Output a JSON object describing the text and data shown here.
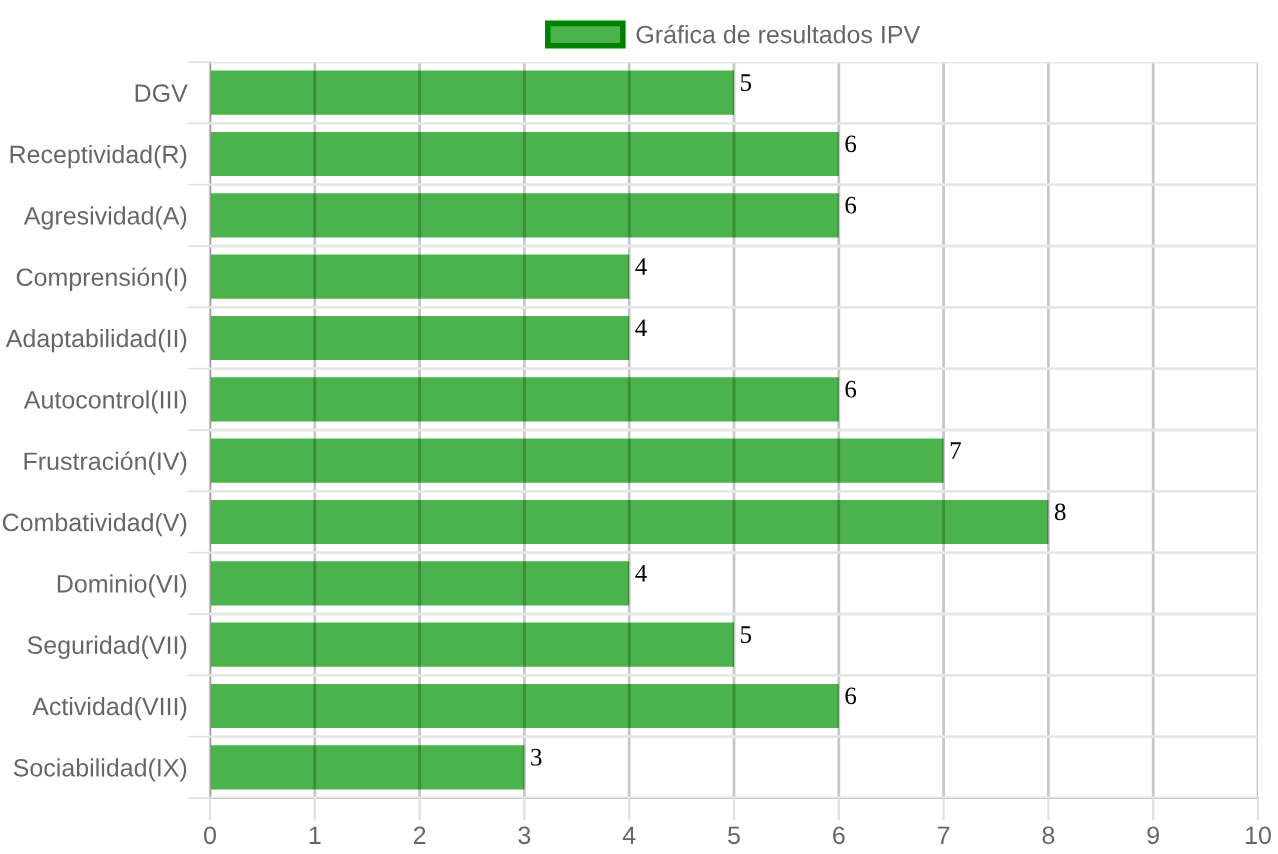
{
  "chart_data": {
    "type": "bar",
    "orientation": "horizontal",
    "categories": [
      "DGV",
      "Receptividad(R)",
      "Agresividad(A)",
      "Comprensión(I)",
      "Adaptabilidad(II)",
      "Autocontrol(III)",
      "Frustración(IV)",
      "Combatividad(V)",
      "Dominio(VI)",
      "Seguridad(VII)",
      "Actividad(VIII)",
      "Sociabilidad(IX)"
    ],
    "series": [
      {
        "name": "Gráfica de resultados IPV",
        "color": "#4cb34c",
        "values": [
          5,
          6,
          6,
          4,
          4,
          6,
          7,
          8,
          4,
          5,
          6,
          3
        ]
      }
    ],
    "xlim": [
      0,
      10
    ],
    "xticks": [
      0,
      1,
      2,
      3,
      4,
      5,
      6,
      7,
      8,
      9,
      10
    ],
    "grid": true,
    "legend": "top",
    "data_labels": true
  }
}
